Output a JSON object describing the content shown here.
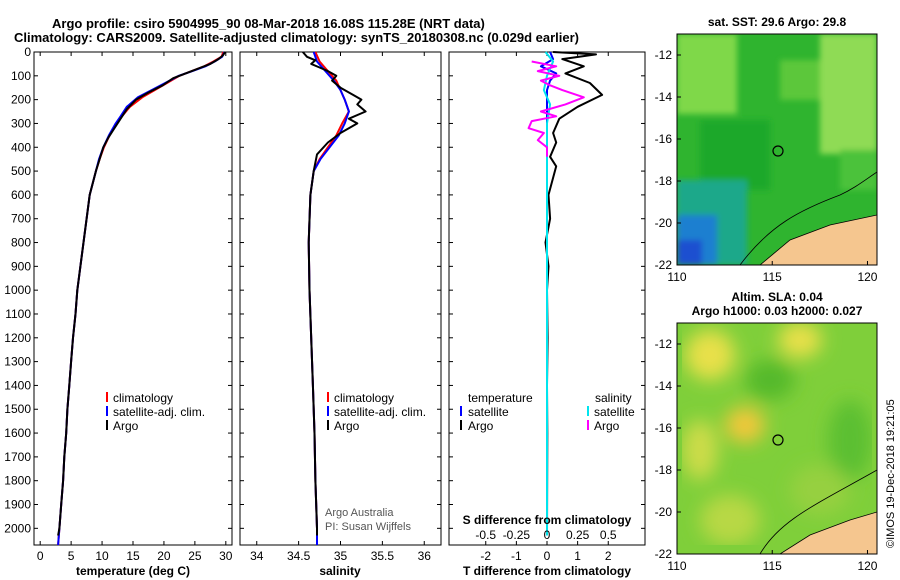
{
  "header": {
    "line1": "Argo profile: csiro 5904995_90 08-Mar-2018 16.08S 115.28E (NRT data)",
    "line2": "Climatology: CARS2009. Satellite-adjusted climatology: synTS_20180308.nc (0.029d earlier)"
  },
  "chart_data": [
    {
      "type": "line",
      "xlabel": "temperature (deg C)",
      "ylabel": "",
      "xlim": [
        -1,
        31
      ],
      "ylim": [
        2070,
        0
      ],
      "xticks": [
        0,
        5,
        10,
        15,
        20,
        25,
        30
      ],
      "yticks": [
        0,
        100,
        200,
        300,
        400,
        500,
        600,
        700,
        800,
        900,
        1000,
        1100,
        1200,
        1300,
        1400,
        1500,
        1600,
        1700,
        1800,
        1900,
        2000
      ],
      "legend": [
        "climatology",
        "satellite-adj. clim.",
        "Argo"
      ],
      "series": [
        {
          "name": "climatology",
          "color": "#ff0000",
          "points": [
            [
              29.6,
              0
            ],
            [
              29.3,
              20
            ],
            [
              28,
              40
            ],
            [
              26.5,
              60
            ],
            [
              24.5,
              80
            ],
            [
              22.5,
              100
            ],
            [
              20.5,
              130
            ],
            [
              18.5,
              160
            ],
            [
              16.5,
              190
            ],
            [
              14.5,
              230
            ],
            [
              13.2,
              270
            ],
            [
              12.3,
              300
            ],
            [
              11.2,
              350
            ],
            [
              10.3,
              400
            ],
            [
              9.6,
              450
            ],
            [
              9,
              500
            ],
            [
              8.5,
              550
            ],
            [
              8,
              600
            ],
            [
              7.5,
              700
            ],
            [
              7,
              800
            ],
            [
              6.5,
              900
            ],
            [
              6,
              1000
            ],
            [
              5.7,
              1100
            ],
            [
              5.3,
              1200
            ],
            [
              5,
              1300
            ],
            [
              4.7,
              1400
            ],
            [
              4.4,
              1500
            ],
            [
              4.2,
              1600
            ],
            [
              3.9,
              1700
            ],
            [
              3.7,
              1800
            ],
            [
              3.4,
              1900
            ],
            [
              3.1,
              2000
            ],
            [
              2.9,
              2070
            ]
          ]
        },
        {
          "name": "satellite-adj. clim.",
          "color": "#0000ff",
          "points": [
            [
              29.8,
              0
            ],
            [
              29.4,
              20
            ],
            [
              28.2,
              40
            ],
            [
              26.7,
              60
            ],
            [
              24.6,
              80
            ],
            [
              22.4,
              100
            ],
            [
              20.2,
              130
            ],
            [
              18,
              160
            ],
            [
              15.8,
              190
            ],
            [
              14,
              230
            ],
            [
              13,
              270
            ],
            [
              12.2,
              300
            ],
            [
              11.1,
              350
            ],
            [
              10.2,
              400
            ],
            [
              9.5,
              450
            ],
            [
              9,
              500
            ],
            [
              8.5,
              550
            ],
            [
              8,
              600
            ],
            [
              7.5,
              700
            ],
            [
              7,
              800
            ],
            [
              6.5,
              900
            ],
            [
              6,
              1000
            ],
            [
              5.7,
              1100
            ],
            [
              5.3,
              1200
            ],
            [
              5,
              1300
            ],
            [
              4.7,
              1400
            ],
            [
              4.4,
              1500
            ],
            [
              4.2,
              1600
            ],
            [
              3.9,
              1700
            ],
            [
              3.7,
              1800
            ],
            [
              3.4,
              1900
            ],
            [
              3.1,
              2000
            ],
            [
              2.9,
              2070
            ]
          ]
        },
        {
          "name": "Argo",
          "color": "#000000",
          "points": [
            [
              29.9,
              0
            ],
            [
              29.5,
              15
            ],
            [
              28.8,
              30
            ],
            [
              27.5,
              50
            ],
            [
              25.5,
              70
            ],
            [
              23.5,
              90
            ],
            [
              21.5,
              110
            ],
            [
              19.8,
              140
            ],
            [
              17.5,
              170
            ],
            [
              15.5,
              200
            ],
            [
              14,
              240
            ],
            [
              13,
              280
            ],
            [
              12,
              320
            ],
            [
              11,
              360
            ],
            [
              10.2,
              400
            ],
            [
              9.6,
              450
            ],
            [
              9,
              500
            ],
            [
              8.5,
              550
            ],
            [
              8,
              600
            ],
            [
              7.5,
              700
            ],
            [
              7,
              800
            ],
            [
              6.5,
              900
            ],
            [
              6,
              1000
            ],
            [
              5.7,
              1100
            ],
            [
              5.3,
              1200
            ],
            [
              5,
              1300
            ],
            [
              4.7,
              1400
            ],
            [
              4.4,
              1500
            ],
            [
              4.2,
              1600
            ],
            [
              3.9,
              1700
            ],
            [
              3.7,
              1800
            ],
            [
              3.4,
              1900
            ],
            [
              3.1,
              2000
            ],
            [
              2.9,
              2030
            ]
          ]
        }
      ]
    },
    {
      "type": "line",
      "xlabel": "salinity",
      "xlim": [
        33.8,
        36.2
      ],
      "ylim": [
        2070,
        0
      ],
      "xticks": [
        34,
        34.5,
        35,
        35.5,
        36
      ],
      "xticklabels": [
        "34",
        "34.5",
        "35",
        "35.5",
        "36"
      ],
      "legend": [
        "climatology",
        "satellite-adj. clim.",
        "Argo"
      ],
      "annotation": [
        "Argo Australia",
        "PI: Susan Wijffels"
      ],
      "series": [
        {
          "name": "climatology",
          "color": "#ff0000",
          "points": [
            [
              34.7,
              0
            ],
            [
              34.75,
              40
            ],
            [
              34.85,
              80
            ],
            [
              34.95,
              120
            ],
            [
              35,
              160
            ],
            [
              35.05,
              200
            ],
            [
              35.1,
              250
            ],
            [
              35.02,
              300
            ],
            [
              34.95,
              350
            ],
            [
              34.85,
              400
            ],
            [
              34.75,
              450
            ],
            [
              34.68,
              500
            ],
            [
              34.64,
              600
            ],
            [
              34.62,
              800
            ],
            [
              34.63,
              1000
            ],
            [
              34.65,
              1200
            ],
            [
              34.67,
              1400
            ],
            [
              34.69,
              1600
            ],
            [
              34.7,
              1800
            ],
            [
              34.72,
              2000
            ],
            [
              34.72,
              2070
            ]
          ]
        },
        {
          "name": "satellite-adj. clim.",
          "color": "#0000ff",
          "points": [
            [
              34.68,
              0
            ],
            [
              34.72,
              40
            ],
            [
              34.82,
              80
            ],
            [
              34.92,
              120
            ],
            [
              35,
              160
            ],
            [
              35.05,
              200
            ],
            [
              35.1,
              250
            ],
            [
              35.05,
              300
            ],
            [
              34.98,
              350
            ],
            [
              34.87,
              400
            ],
            [
              34.76,
              450
            ],
            [
              34.68,
              500
            ],
            [
              34.64,
              600
            ],
            [
              34.62,
              800
            ],
            [
              34.63,
              1000
            ],
            [
              34.65,
              1200
            ],
            [
              34.67,
              1400
            ],
            [
              34.69,
              1600
            ],
            [
              34.7,
              1800
            ],
            [
              34.72,
              2000
            ],
            [
              34.72,
              2070
            ]
          ]
        },
        {
          "name": "Argo",
          "color": "#000000",
          "points": [
            [
              34.55,
              0
            ],
            [
              34.6,
              20
            ],
            [
              34.7,
              35
            ],
            [
              34.65,
              50
            ],
            [
              34.75,
              65
            ],
            [
              34.85,
              80
            ],
            [
              34.95,
              100
            ],
            [
              34.9,
              120
            ],
            [
              35,
              150
            ],
            [
              35.15,
              180
            ],
            [
              35.25,
              200
            ],
            [
              35.2,
              220
            ],
            [
              35.3,
              250
            ],
            [
              35.1,
              280
            ],
            [
              35.2,
              300
            ],
            [
              35,
              340
            ],
            [
              34.85,
              380
            ],
            [
              34.72,
              430
            ],
            [
              34.68,
              500
            ],
            [
              34.64,
              600
            ],
            [
              34.62,
              800
            ],
            [
              34.63,
              1000
            ],
            [
              34.65,
              1200
            ],
            [
              34.67,
              1400
            ],
            [
              34.69,
              1600
            ],
            [
              34.7,
              1800
            ],
            [
              34.72,
              2000
            ],
            [
              34.72,
              2030
            ]
          ]
        }
      ]
    },
    {
      "type": "line",
      "xlabel": "T difference from climatology",
      "xlim": [
        -3.2,
        3.2
      ],
      "ylim": [
        2070,
        0
      ],
      "xticks": [
        -2,
        -1,
        0,
        1,
        2
      ],
      "secondary_xlabel": "S difference from climatology",
      "secondary_xticks": [
        "-0.5",
        "-0.25",
        "0",
        "0.25",
        "0.5"
      ],
      "legend_left_title": "temperature",
      "legend_right_title": "salinity",
      "legend_left": [
        "satellite",
        "Argo"
      ],
      "legend_right": [
        "satellite",
        "Argo"
      ],
      "series": [
        {
          "name": "temperature satellite",
          "color": "#0000ff",
          "points": [
            [
              0.1,
              0
            ],
            [
              0.2,
              30
            ],
            [
              -0.2,
              60
            ],
            [
              0.3,
              90
            ],
            [
              0.1,
              120
            ],
            [
              0,
              160
            ],
            [
              0,
              400
            ],
            [
              0,
              2030
            ]
          ]
        },
        {
          "name": "temperature Argo",
          "color": "#000000",
          "points": [
            [
              0.2,
              0
            ],
            [
              1.6,
              10
            ],
            [
              0.5,
              30
            ],
            [
              1.2,
              60
            ],
            [
              0.6,
              90
            ],
            [
              1.4,
              130
            ],
            [
              1.8,
              180
            ],
            [
              1,
              230
            ],
            [
              0.4,
              280
            ],
            [
              0.2,
              340
            ],
            [
              0.3,
              380
            ],
            [
              0.1,
              440
            ],
            [
              0.3,
              480
            ],
            [
              0.05,
              600
            ],
            [
              0.1,
              700
            ],
            [
              -0.05,
              800
            ],
            [
              0.05,
              900
            ],
            [
              0,
              1000
            ],
            [
              0.02,
              1200
            ],
            [
              0,
              1400
            ],
            [
              0.01,
              1600
            ],
            [
              0,
              2030
            ]
          ]
        },
        {
          "name": "salinity satellite",
          "color": "#00e5ee",
          "points": [
            [
              -0.05,
              0
            ],
            [
              0.2,
              40
            ],
            [
              0,
              100
            ],
            [
              -0.1,
              160
            ],
            [
              0.1,
              220
            ],
            [
              0,
              300
            ],
            [
              0,
              400
            ],
            [
              0,
              1000
            ],
            [
              0,
              2030
            ]
          ]
        },
        {
          "name": "salinity Argo",
          "color": "#ff00ff",
          "points": [
            [
              -0.5,
              40
            ],
            [
              0.3,
              60
            ],
            [
              -0.3,
              80
            ],
            [
              0.4,
              100
            ],
            [
              -0.2,
              120
            ],
            [
              0.1,
              140
            ],
            [
              0.5,
              160
            ],
            [
              1.2,
              190
            ],
            [
              0.6,
              220
            ],
            [
              -0.2,
              250
            ],
            [
              0.3,
              270
            ],
            [
              -0.5,
              290
            ],
            [
              -0.6,
              320
            ],
            [
              -0.1,
              340
            ],
            [
              -0.3,
              370
            ],
            [
              0,
              400
            ],
            [
              0,
              440
            ]
          ]
        }
      ]
    }
  ],
  "maps": {
    "sst": {
      "title": "sat. SST: 29.6 Argo: 29.8",
      "xticks": [
        "110",
        "115",
        "120"
      ],
      "yticks": [
        "-12",
        "-14",
        "-16",
        "-18",
        "-20",
        "-22"
      ]
    },
    "sla": {
      "title1": "Altim. SLA: 0.04",
      "title2": "Argo h1000: 0.03 h2000: 0.027",
      "xticks": [
        "110",
        "115",
        "120"
      ],
      "yticks": [
        "-12",
        "-14",
        "-16",
        "-18",
        "-20",
        "-22"
      ]
    }
  },
  "footer": {
    "credit": "©IMOS 19-Dec-2018 19:21:05"
  }
}
